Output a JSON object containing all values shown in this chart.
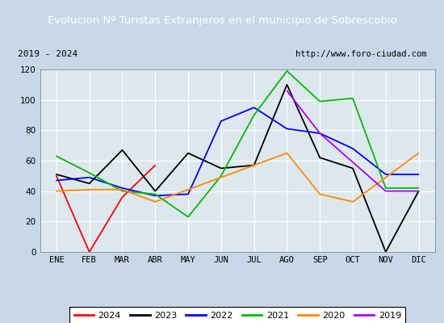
{
  "title": "Evolucion Nº Turistas Extranjeros en el municipio de Sobrescobio",
  "subtitle_left": "2019 - 2024",
  "subtitle_right": "http://www.foro-ciudad.com",
  "months": [
    "ENE",
    "FEB",
    "MAR",
    "ABR",
    "MAY",
    "JUN",
    "JUL",
    "AGO",
    "SEP",
    "OCT",
    "NOV",
    "DIC"
  ],
  "series": {
    "2024": [
      50,
      0,
      36,
      57,
      null,
      null,
      null,
      null,
      null,
      null,
      null,
      null
    ],
    "2023": [
      51,
      45,
      67,
      40,
      65,
      55,
      57,
      110,
      62,
      55,
      0,
      40
    ],
    "2022": [
      47,
      49,
      42,
      37,
      38,
      86,
      95,
      81,
      78,
      68,
      51,
      51
    ],
    "2021": [
      63,
      52,
      40,
      38,
      23,
      50,
      90,
      119,
      99,
      101,
      42,
      42
    ],
    "2020": [
      40,
      41,
      41,
      33,
      null,
      null,
      null,
      65,
      38,
      33,
      null,
      65
    ],
    "2019": [
      null,
      null,
      null,
      null,
      null,
      null,
      null,
      106,
      78,
      null,
      40,
      40
    ]
  },
  "colors": {
    "2024": "#ff0000",
    "2023": "#000000",
    "2022": "#0000ff",
    "2021": "#00bb00",
    "2020": "#ff8800",
    "2019": "#aa00ff"
  },
  "ylim": [
    0,
    120
  ],
  "yticks": [
    0,
    20,
    40,
    60,
    80,
    100,
    120
  ],
  "title_bg_color": "#5599cc",
  "title_color": "#ffffff",
  "plot_bg_color": "#dde8ee",
  "outer_bg_color": "#c8d8e8",
  "grid_color": "#ffffff",
  "subtitle_box_color": "#ffffff",
  "border_color": "#888888"
}
